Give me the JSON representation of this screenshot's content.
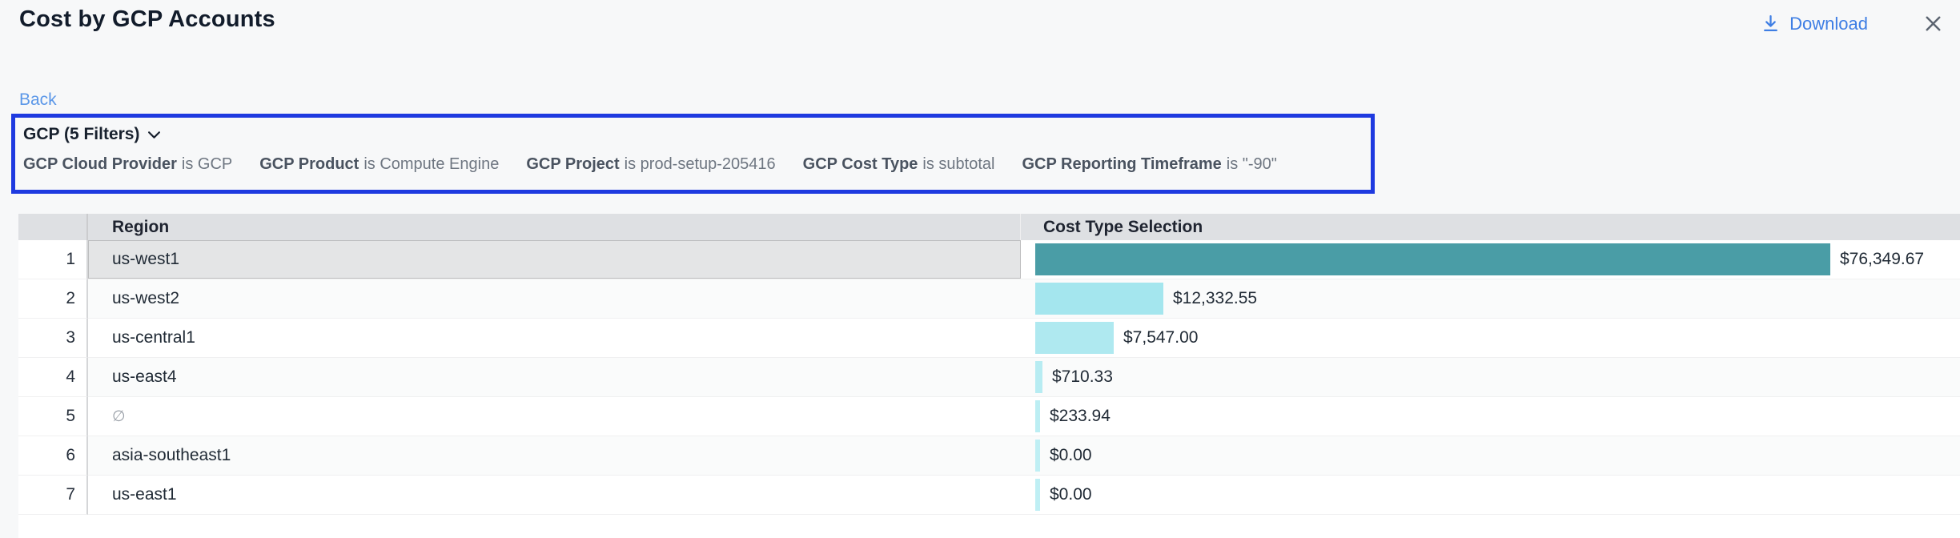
{
  "header": {
    "title": "Cost by GCP Accounts",
    "download_label": "Download"
  },
  "nav": {
    "back_label": "Back"
  },
  "filter_bar": {
    "summary_label": "GCP (5 Filters)",
    "filters": [
      {
        "field": "GCP Cloud Provider",
        "condition": "is GCP"
      },
      {
        "field": "GCP Product",
        "condition": "is Compute Engine"
      },
      {
        "field": "GCP Project",
        "condition": "is prod-setup-205416"
      },
      {
        "field": "GCP Cost Type",
        "condition": "is subtotal"
      },
      {
        "field": "GCP Reporting Timeframe",
        "condition": "is \"-90\""
      }
    ]
  },
  "table": {
    "columns": {
      "region": "Region",
      "cost": "Cost Type Selection"
    },
    "max_value": 76349.67,
    "rows": [
      {
        "index": 1,
        "region": "us-west1",
        "value": 76349.67,
        "value_label": "$76,349.67",
        "bar_color": "#4A9DA6",
        "selected": true,
        "null_region": false
      },
      {
        "index": 2,
        "region": "us-west2",
        "value": 12332.55,
        "value_label": "$12,332.55",
        "bar_color": "#A4E6EE",
        "selected": false,
        "null_region": false
      },
      {
        "index": 3,
        "region": "us-central1",
        "value": 7547.0,
        "value_label": "$7,547.00",
        "bar_color": "#AFE9F0",
        "selected": false,
        "null_region": false
      },
      {
        "index": 4,
        "region": "us-east4",
        "value": 710.33,
        "value_label": "$710.33",
        "bar_color": "#B7ECF2",
        "selected": false,
        "null_region": false
      },
      {
        "index": 5,
        "region": "∅",
        "value": 233.94,
        "value_label": "$233.94",
        "bar_color": "#BCEEF3",
        "selected": false,
        "null_region": true
      },
      {
        "index": 6,
        "region": "asia-southeast1",
        "value": 0.0,
        "value_label": "$0.00",
        "bar_color": "#BFEFF4",
        "selected": false,
        "null_region": false
      },
      {
        "index": 7,
        "region": "us-east1",
        "value": 0.0,
        "value_label": "$0.00",
        "bar_color": "#BFEFF4",
        "selected": false,
        "null_region": false
      }
    ]
  },
  "colors": {
    "filter_border": "#1E3AE0",
    "download_blue": "#3E7EE4",
    "back_blue": "#5B97E8",
    "bar_teal": "#4A9DA6",
    "bar_cyan": "#A4E6EE",
    "header_gray": "#DEE0E3",
    "selected_cell": "#E4E5E6",
    "page_bg": "#F7F8F9"
  }
}
